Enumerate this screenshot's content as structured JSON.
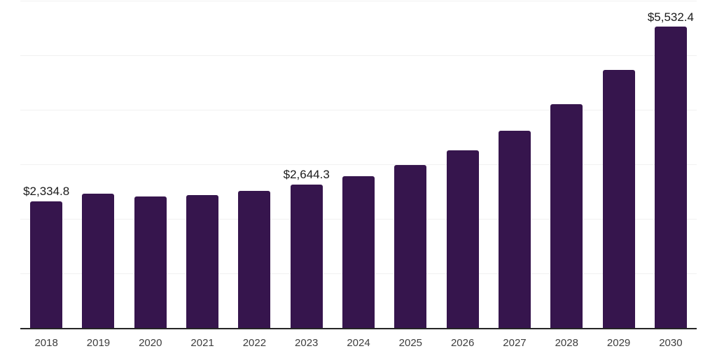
{
  "chart_data": {
    "type": "bar",
    "title": "",
    "xlabel": "",
    "ylabel": "",
    "categories": [
      "2018",
      "2019",
      "2020",
      "2021",
      "2022",
      "2023",
      "2024",
      "2025",
      "2026",
      "2027",
      "2028",
      "2029",
      "2030"
    ],
    "values": [
      2334.8,
      2477,
      2428,
      2452,
      2529,
      2644.3,
      2798,
      3003,
      3268,
      3631,
      4117,
      4744,
      5532.4
    ],
    "data_labels": {
      "2018": "$2,334.8",
      "2023": "$2,644.3",
      "2030": "$5,532.4"
    },
    "ylim": [
      0,
      6000
    ],
    "gridline_step": 1000,
    "grid": "horizontal",
    "legend": "none",
    "y_axis_tick_labels": "none",
    "colors": {
      "bar": "#36154d",
      "axis_line": "#262626",
      "gridline": "#f1f1f1",
      "data_label": "#1a1a1a",
      "tick_label": "#3d3d3d",
      "background": "#ffffff"
    }
  }
}
